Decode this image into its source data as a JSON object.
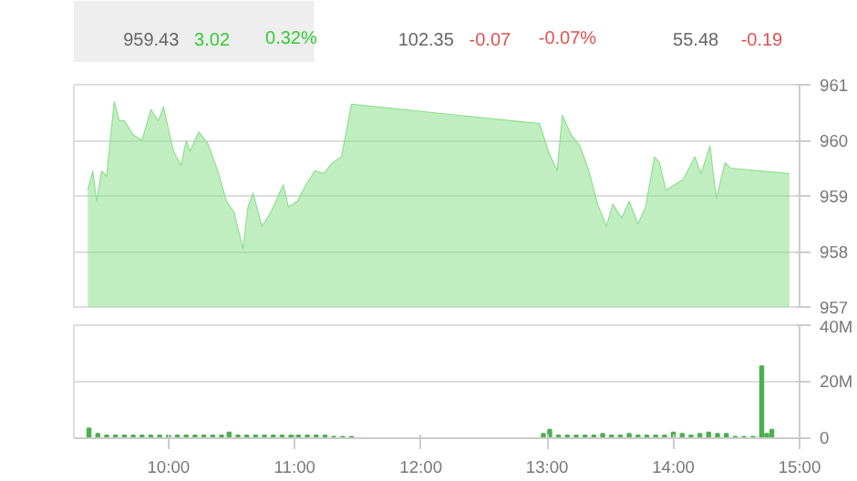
{
  "chart_data": [
    {
      "type": "other",
      "annotations": [
        "959.43",
        "3.02",
        "0.32%",
        "102.35",
        "-0.07",
        "-0.07%",
        "55.48",
        "-0.19"
      ],
      "colors": [
        "#666666",
        "#33cc33",
        "#33cc33",
        "#666666",
        "#e05050",
        "#e05050",
        "#666666",
        "#e05050"
      ]
    },
    {
      "type": "area",
      "color": "#8ee08e",
      "x": [
        9.36,
        9.4,
        9.43,
        9.47,
        9.51,
        9.57,
        9.61,
        9.65,
        9.72,
        9.79,
        9.86,
        9.92,
        9.96,
        10.0,
        10.04,
        10.1,
        10.14,
        10.17,
        10.24,
        10.31,
        10.35,
        10.39,
        10.46,
        10.52,
        10.59,
        10.63,
        10.67,
        10.74,
        10.81,
        10.91,
        10.95,
        11.02,
        11.09,
        11.16,
        11.23,
        11.3,
        11.37,
        11.45,
        12.94,
        13.01,
        13.08,
        13.12,
        13.19,
        13.26,
        13.33,
        13.4,
        13.47,
        13.52,
        13.59,
        13.65,
        13.72,
        13.78,
        13.85,
        13.89,
        13.94,
        14.01,
        14.08,
        14.17,
        14.22,
        14.29,
        14.34,
        14.41,
        14.45,
        14.92
      ],
      "values": [
        959.1,
        959.45,
        958.9,
        959.45,
        959.35,
        960.7,
        960.35,
        960.35,
        960.1,
        960.0,
        960.55,
        960.35,
        960.6,
        960.2,
        959.8,
        959.55,
        960.0,
        959.8,
        960.15,
        959.95,
        959.7,
        959.45,
        958.9,
        958.7,
        958.05,
        958.8,
        959.05,
        958.45,
        958.7,
        959.2,
        958.8,
        958.9,
        959.2,
        959.45,
        959.4,
        959.6,
        959.7,
        960.65,
        960.3,
        959.8,
        959.45,
        960.45,
        960.1,
        959.9,
        959.45,
        958.85,
        958.45,
        958.85,
        958.6,
        958.9,
        958.5,
        958.8,
        959.7,
        959.6,
        959.1,
        959.2,
        959.3,
        959.7,
        959.4,
        959.9,
        958.95,
        959.6,
        959.5,
        959.4
      ],
      "xlim": [
        9.25,
        15.0
      ],
      "ylim": [
        957,
        961
      ],
      "yticks": [
        957,
        958,
        959,
        960,
        961
      ],
      "grid": "y",
      "tick_labels": "y"
    },
    {
      "type": "bar",
      "color": "#4caf50",
      "x": [
        9.37,
        9.44,
        9.51,
        9.58,
        9.65,
        9.72,
        9.79,
        9.86,
        9.93,
        10.0,
        10.07,
        10.14,
        10.21,
        10.28,
        10.35,
        10.42,
        10.48,
        10.55,
        10.62,
        10.69,
        10.76,
        10.83,
        10.9,
        10.97,
        11.03,
        11.1,
        11.17,
        11.24,
        11.31,
        11.38,
        11.45,
        12.97,
        13.02,
        13.09,
        13.16,
        13.23,
        13.3,
        13.37,
        13.44,
        13.51,
        13.58,
        13.65,
        13.72,
        13.79,
        13.86,
        13.93,
        14.0,
        14.07,
        14.14,
        14.21,
        14.28,
        14.35,
        14.42,
        14.49,
        14.56,
        14.63,
        14.7,
        14.74,
        14.78
      ],
      "values": [
        3.5,
        1.5,
        1,
        1,
        1,
        1,
        1,
        1,
        1,
        1,
        1,
        1,
        1,
        1,
        1,
        1,
        2,
        1,
        1,
        1,
        1,
        1,
        1,
        1,
        1,
        1,
        1,
        1,
        0.5,
        0.5,
        0.5,
        1.5,
        3,
        1,
        1,
        1,
        1,
        1,
        1.5,
        1,
        1,
        1.5,
        1,
        1,
        1,
        1,
        2,
        1.5,
        1,
        1.5,
        2,
        1.5,
        1.5,
        0.5,
        0.5,
        0.5,
        25.5,
        1.5,
        3
      ],
      "xlim": [
        9.25,
        15.0
      ],
      "xticks": [
        {
          "value": 10,
          "label": "10:00"
        },
        {
          "value": 11,
          "label": "11:00"
        },
        {
          "value": 12,
          "label": "12:00"
        },
        {
          "value": 13,
          "label": "13:00"
        },
        {
          "value": 14,
          "label": "14:00"
        },
        {
          "value": 15,
          "label": "15:00"
        }
      ],
      "ylim": [
        0,
        40
      ],
      "yticks": [
        0,
        {
          "value": 20,
          "label": "20M"
        },
        {
          "value": 40,
          "label": "40M"
        }
      ],
      "grid": "y"
    }
  ]
}
